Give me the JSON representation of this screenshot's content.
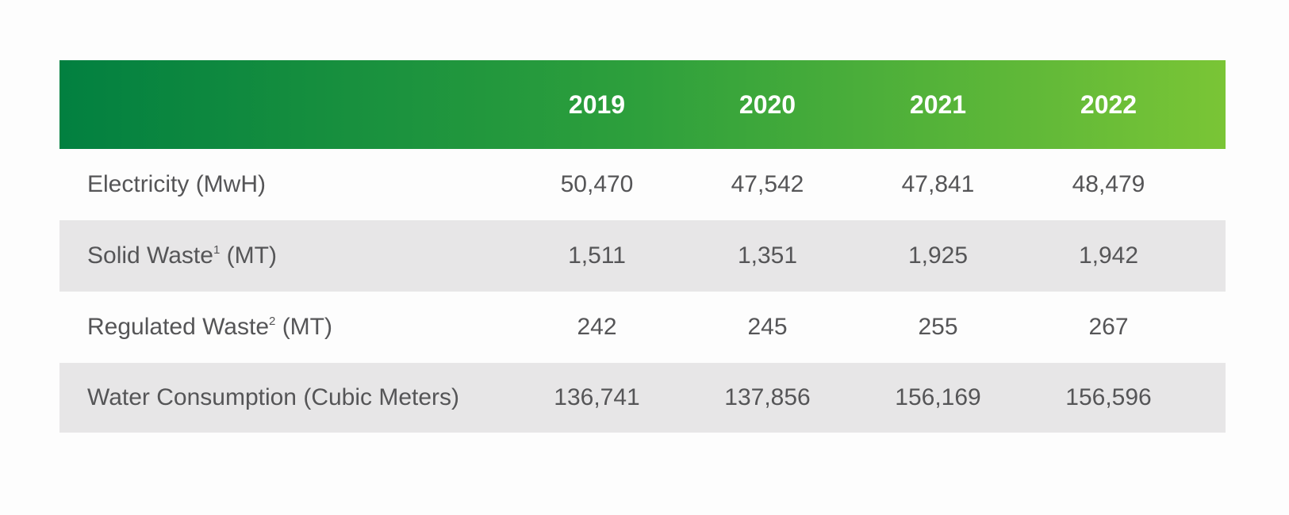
{
  "colors": {
    "header_gradient_start": "#028040",
    "header_gradient_mid": "#2ea03c",
    "header_gradient_end": "#7ac536",
    "row_white": "#fdfdfd",
    "row_gray": "#e7e6e7",
    "text": "#555557",
    "header_text": "#ffffff"
  },
  "chart_data": {
    "type": "table",
    "columns": [
      "",
      "2019",
      "2020",
      "2021",
      "2022"
    ],
    "rows": [
      {
        "label": "Electricity (MwH)",
        "label_main": "Electricity",
        "label_sup": "",
        "label_unit": " (MwH)",
        "values": [
          "50,470",
          "47,542",
          "47,841",
          "48,479"
        ]
      },
      {
        "label": "Solid Waste¹ (MT)",
        "label_main": "Solid Waste",
        "label_sup": "1",
        "label_unit": " (MT)",
        "values": [
          "1,511",
          "1,351",
          "1,925",
          "1,942"
        ]
      },
      {
        "label": "Regulated Waste² (MT)",
        "label_main": "Regulated Waste",
        "label_sup": "2",
        "label_unit": " (MT)",
        "values": [
          "242",
          "245",
          "255",
          "267"
        ]
      },
      {
        "label": "Water Consumption (Cubic Meters)",
        "label_main": "Water Consumption",
        "label_sup": "",
        "label_unit": " (Cubic Meters)",
        "values": [
          "136,741",
          "137,856",
          "156,169",
          "156,596"
        ]
      }
    ]
  }
}
